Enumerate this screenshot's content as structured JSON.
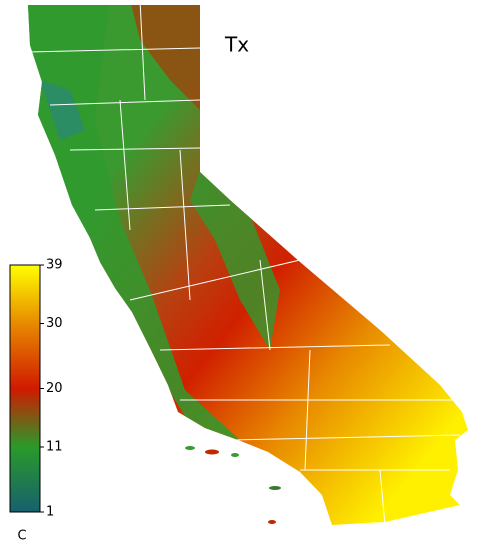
{
  "title": "Tx",
  "colorbar": {
    "unit": "C",
    "lim": [
      1,
      39
    ],
    "ticks": [
      1,
      11,
      20,
      30,
      39
    ],
    "colors": [
      "#17606e",
      "#2a9a2a",
      "#d01a00",
      "#e88a00",
      "#ffff00"
    ]
  }
}
